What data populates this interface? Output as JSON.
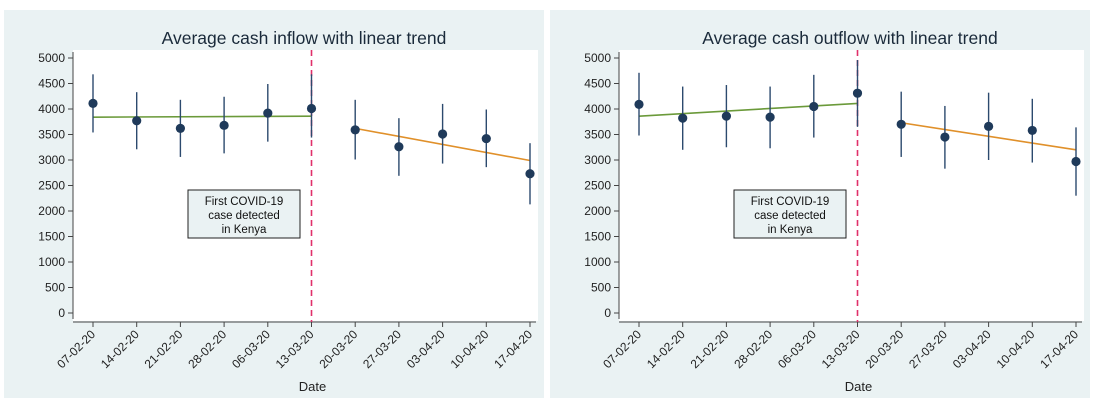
{
  "chart_data": [
    {
      "type": "scatter",
      "title": "Average cash inflow with linear trend",
      "xlabel": "Date",
      "ylabel": "",
      "ylim": [
        0,
        5000
      ],
      "yticks": [
        0,
        500,
        1000,
        1500,
        2000,
        2500,
        3000,
        3500,
        4000,
        4500,
        5000
      ],
      "categories": [
        "07-02-20",
        "14-02-20",
        "21-02-20",
        "28-02-20",
        "06-03-20",
        "13-03-20",
        "20-03-20",
        "27-03-20",
        "03-04-20",
        "10-04-20",
        "17-04-20"
      ],
      "series": [
        {
          "values": [
            4110,
            3770,
            3620,
            3680,
            3920,
            4010,
            3590,
            3260,
            3510,
            3420,
            2730
          ],
          "ci_low": [
            3540,
            3210,
            3060,
            3130,
            3360,
            3440,
            3010,
            2690,
            2930,
            2860,
            2130
          ],
          "ci_high": [
            4680,
            4330,
            4180,
            4240,
            4490,
            4680,
            4180,
            3820,
            4100,
            3990,
            3330
          ]
        }
      ],
      "trend_pre": [
        3840,
        3860
      ],
      "trend_post": [
        3620,
        2990
      ],
      "vline_category": "13-03-20",
      "annotation": [
        "First COVID-19",
        "case detected",
        "in Kenya"
      ],
      "colors": {
        "points": "#1f3a5a",
        "ci": "#2c4a6e",
        "trend_pre": "#6b9a3a",
        "trend_post": "#e0902a",
        "vline": "#e0306a",
        "background": "#eaf2f3"
      }
    },
    {
      "type": "scatter",
      "title": "Average cash outflow with linear trend",
      "xlabel": "Date",
      "ylabel": "",
      "ylim": [
        0,
        5000
      ],
      "yticks": [
        0,
        500,
        1000,
        1500,
        2000,
        2500,
        3000,
        3500,
        4000,
        4500,
        5000
      ],
      "categories": [
        "07-02-20",
        "14-02-20",
        "21-02-20",
        "28-02-20",
        "06-03-20",
        "13-03-20",
        "20-03-20",
        "27-03-20",
        "03-04-20",
        "10-04-20",
        "17-04-20"
      ],
      "series": [
        {
          "values": [
            4090,
            3820,
            3860,
            3840,
            4050,
            4310,
            3700,
            3450,
            3660,
            3580,
            2970
          ],
          "ci_low": [
            3480,
            3200,
            3250,
            3230,
            3440,
            3650,
            3060,
            2830,
            3000,
            2950,
            2300
          ],
          "ci_high": [
            4710,
            4440,
            4470,
            4440,
            4670,
            4960,
            4340,
            4060,
            4320,
            4200,
            3640
          ]
        }
      ],
      "trend_pre": [
        3860,
        4110
      ],
      "trend_post": [
        3730,
        3200
      ],
      "vline_category": "13-03-20",
      "annotation": [
        "First COVID-19",
        "case detected",
        "in Kenya"
      ],
      "colors": {
        "points": "#1f3a5a",
        "ci": "#2c4a6e",
        "trend_pre": "#6b9a3a",
        "trend_post": "#e0902a",
        "vline": "#e0306a",
        "background": "#eaf2f3"
      }
    }
  ]
}
